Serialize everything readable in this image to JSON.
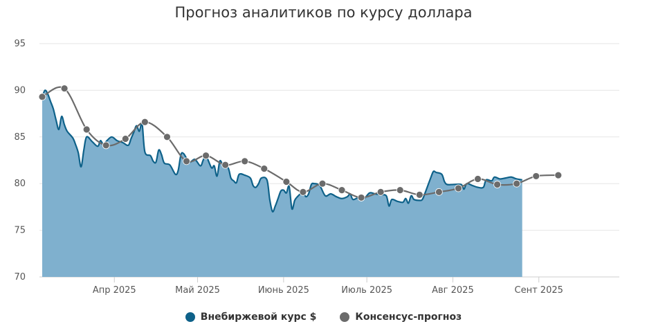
{
  "chart_data": {
    "type": "area",
    "title": "Прогноз аналитиков по курсу доллара",
    "xlabel": "",
    "ylabel": "",
    "ylim": [
      70,
      95
    ],
    "yticks": [
      70,
      75,
      80,
      85,
      90,
      95
    ],
    "xlim": [
      "2025-03-05",
      "2025-09-30"
    ],
    "xticks": [
      {
        "date": "2025-04-01",
        "label": "Апр 2025"
      },
      {
        "date": "2025-05-01",
        "label": "Май 2025"
      },
      {
        "date": "2025-06-01",
        "label": "Июнь 2025"
      },
      {
        "date": "2025-07-01",
        "label": "Июль 2025"
      },
      {
        "date": "2025-08-01",
        "label": "Авг 2025"
      },
      {
        "date": "2025-09-01",
        "label": "Сент 2025"
      }
    ],
    "grid": true,
    "legend_position": "bottom",
    "series": [
      {
        "name": "Внебиржевой курс $",
        "type": "area",
        "color": "#0e6189",
        "fill": "#7fb0ce",
        "points": [
          [
            "2025-03-06",
            89.3
          ],
          [
            "2025-03-07",
            90.0
          ],
          [
            "2025-03-08",
            89.6
          ],
          [
            "2025-03-09",
            88.8
          ],
          [
            "2025-03-10",
            88.0
          ],
          [
            "2025-03-11",
            86.8
          ],
          [
            "2025-03-12",
            85.8
          ],
          [
            "2025-03-13",
            87.2
          ],
          [
            "2025-03-14",
            86.3
          ],
          [
            "2025-03-15",
            85.6
          ],
          [
            "2025-03-17",
            84.9
          ],
          [
            "2025-03-18",
            84.2
          ],
          [
            "2025-03-19",
            83.3
          ],
          [
            "2025-03-20",
            81.8
          ],
          [
            "2025-03-21",
            83.6
          ],
          [
            "2025-03-22",
            85.0
          ],
          [
            "2025-03-24",
            84.5
          ],
          [
            "2025-03-26",
            84.0
          ],
          [
            "2025-03-27",
            84.6
          ],
          [
            "2025-03-28",
            84.2
          ],
          [
            "2025-03-29",
            84.5
          ],
          [
            "2025-03-31",
            85.0
          ],
          [
            "2025-04-02",
            84.6
          ],
          [
            "2025-04-04",
            84.4
          ],
          [
            "2025-04-06",
            84.1
          ],
          [
            "2025-04-07",
            84.8
          ],
          [
            "2025-04-08",
            85.5
          ],
          [
            "2025-04-09",
            86.2
          ],
          [
            "2025-04-10",
            85.6
          ],
          [
            "2025-04-11",
            86.4
          ],
          [
            "2025-04-12",
            83.4
          ],
          [
            "2025-04-14",
            83.0
          ],
          [
            "2025-04-15",
            82.4
          ],
          [
            "2025-04-16",
            82.3
          ],
          [
            "2025-04-17",
            83.6
          ],
          [
            "2025-04-18",
            83.1
          ],
          [
            "2025-04-19",
            82.2
          ],
          [
            "2025-04-21",
            82.0
          ],
          [
            "2025-04-23",
            81.0
          ],
          [
            "2025-04-24",
            81.4
          ],
          [
            "2025-04-25",
            83.1
          ],
          [
            "2025-04-26",
            83.2
          ],
          [
            "2025-04-28",
            82.3
          ],
          [
            "2025-04-30",
            82.6
          ],
          [
            "2025-05-02",
            81.9
          ],
          [
            "2025-05-03",
            82.5
          ],
          [
            "2025-05-04",
            83.0
          ],
          [
            "2025-05-06",
            81.7
          ],
          [
            "2025-05-07",
            81.9
          ],
          [
            "2025-05-08",
            80.8
          ],
          [
            "2025-05-09",
            82.4
          ],
          [
            "2025-05-10",
            82.1
          ],
          [
            "2025-05-12",
            81.7
          ],
          [
            "2025-05-13",
            80.6
          ],
          [
            "2025-05-14",
            80.3
          ],
          [
            "2025-05-15",
            80.1
          ],
          [
            "2025-05-16",
            81.0
          ],
          [
            "2025-05-18",
            80.9
          ],
          [
            "2025-05-20",
            80.6
          ],
          [
            "2025-05-21",
            79.8
          ],
          [
            "2025-05-22",
            79.6
          ],
          [
            "2025-05-23",
            80.0
          ],
          [
            "2025-05-24",
            80.6
          ],
          [
            "2025-05-26",
            80.4
          ],
          [
            "2025-05-27",
            78.3
          ],
          [
            "2025-05-28",
            77.0
          ],
          [
            "2025-05-29",
            77.6
          ],
          [
            "2025-05-30",
            78.4
          ],
          [
            "2025-05-31",
            79.2
          ],
          [
            "2025-06-01",
            79.3
          ],
          [
            "2025-06-02",
            79.0
          ],
          [
            "2025-06-03",
            79.7
          ],
          [
            "2025-06-04",
            77.3
          ],
          [
            "2025-06-05",
            78.2
          ],
          [
            "2025-06-06",
            78.6
          ],
          [
            "2025-06-08",
            79.1
          ],
          [
            "2025-06-09",
            78.6
          ],
          [
            "2025-06-10",
            78.9
          ],
          [
            "2025-06-11",
            79.9
          ],
          [
            "2025-06-12",
            80.0
          ],
          [
            "2025-06-14",
            79.8
          ],
          [
            "2025-06-16",
            78.7
          ],
          [
            "2025-06-18",
            78.9
          ],
          [
            "2025-06-20",
            78.6
          ],
          [
            "2025-06-22",
            78.4
          ],
          [
            "2025-06-24",
            78.6
          ],
          [
            "2025-06-25",
            78.9
          ],
          [
            "2025-06-26",
            78.3
          ],
          [
            "2025-06-28",
            78.5
          ],
          [
            "2025-06-30",
            78.4
          ],
          [
            "2025-07-02",
            79.0
          ],
          [
            "2025-07-04",
            78.9
          ],
          [
            "2025-07-06",
            78.8
          ],
          [
            "2025-07-08",
            78.7
          ],
          [
            "2025-07-09",
            77.6
          ],
          [
            "2025-07-10",
            78.3
          ],
          [
            "2025-07-12",
            78.1
          ],
          [
            "2025-07-14",
            78.0
          ],
          [
            "2025-07-15",
            78.4
          ],
          [
            "2025-07-16",
            77.9
          ],
          [
            "2025-07-17",
            78.7
          ],
          [
            "2025-07-18",
            78.3
          ],
          [
            "2025-07-20",
            78.2
          ],
          [
            "2025-07-21",
            78.3
          ],
          [
            "2025-07-22",
            79.0
          ],
          [
            "2025-07-24",
            80.6
          ],
          [
            "2025-07-25",
            81.3
          ],
          [
            "2025-07-26",
            81.2
          ],
          [
            "2025-07-28",
            81.0
          ],
          [
            "2025-07-29",
            80.2
          ],
          [
            "2025-07-30",
            79.9
          ],
          [
            "2025-08-01",
            79.9
          ],
          [
            "2025-08-04",
            79.9
          ],
          [
            "2025-08-05",
            79.4
          ],
          [
            "2025-08-06",
            80.0
          ],
          [
            "2025-08-08",
            79.8
          ],
          [
            "2025-08-10",
            79.6
          ],
          [
            "2025-08-12",
            79.6
          ],
          [
            "2025-08-13",
            80.4
          ],
          [
            "2025-08-15",
            80.3
          ],
          [
            "2025-08-16",
            80.7
          ],
          [
            "2025-08-18",
            80.5
          ],
          [
            "2025-08-20",
            80.6
          ],
          [
            "2025-08-22",
            80.7
          ],
          [
            "2025-08-24",
            80.5
          ],
          [
            "2025-08-26",
            80.4
          ]
        ]
      },
      {
        "name": "Консенсус-прогноз",
        "type": "line",
        "color": "#6b6b6b",
        "points": [
          [
            "2025-03-06",
            89.3
          ],
          [
            "2025-03-14",
            90.2
          ],
          [
            "2025-03-22",
            85.8
          ],
          [
            "2025-03-29",
            84.1
          ],
          [
            "2025-04-05",
            84.8
          ],
          [
            "2025-04-12",
            86.6
          ],
          [
            "2025-04-20",
            85.0
          ],
          [
            "2025-04-27",
            82.4
          ],
          [
            "2025-05-04",
            83.0
          ],
          [
            "2025-05-11",
            82.0
          ],
          [
            "2025-05-18",
            82.4
          ],
          [
            "2025-05-25",
            81.6
          ],
          [
            "2025-06-02",
            80.2
          ],
          [
            "2025-06-08",
            79.1
          ],
          [
            "2025-06-15",
            80.0
          ],
          [
            "2025-06-22",
            79.3
          ],
          [
            "2025-06-29",
            78.5
          ],
          [
            "2025-07-06",
            79.1
          ],
          [
            "2025-07-13",
            79.3
          ],
          [
            "2025-07-20",
            78.8
          ],
          [
            "2025-07-27",
            79.1
          ],
          [
            "2025-08-03",
            79.5
          ],
          [
            "2025-08-10",
            80.5
          ],
          [
            "2025-08-17",
            79.9
          ],
          [
            "2025-08-24",
            80.0
          ],
          [
            "2025-08-31",
            80.8
          ],
          [
            "2025-09-08",
            80.9
          ]
        ]
      }
    ]
  }
}
